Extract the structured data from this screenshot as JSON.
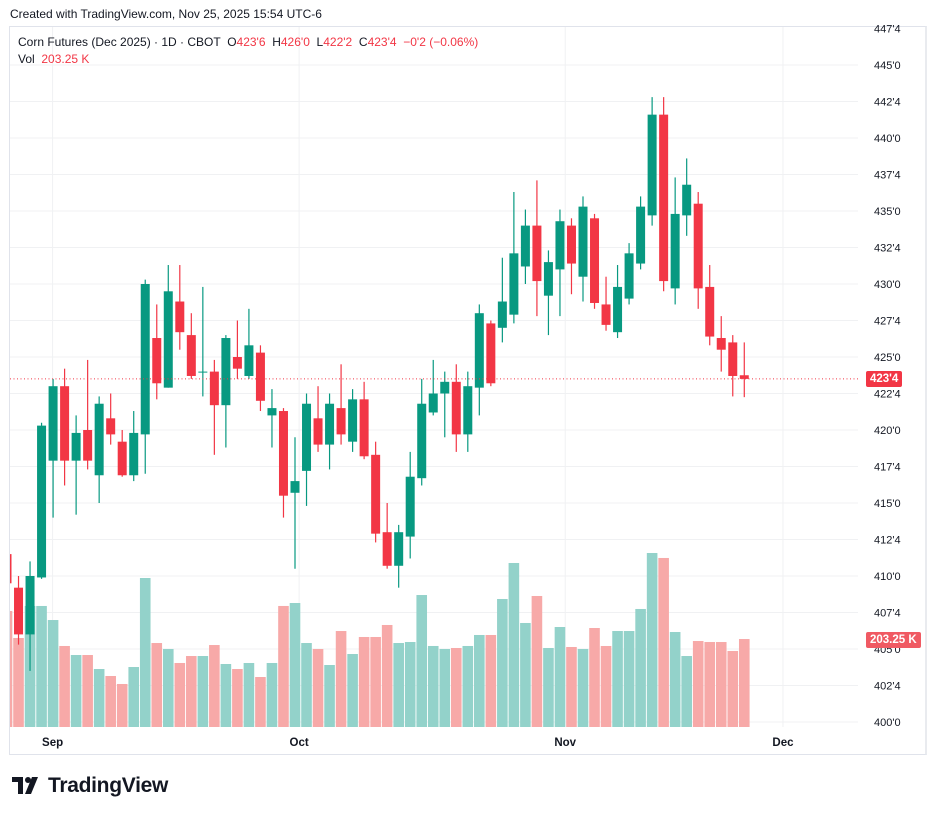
{
  "created_text": "Created with TradingView.com, Nov 25, 2025 15:54 UTC-6",
  "legend": {
    "symbol": "Corn Futures (Dec 2025) · 1D · CBOT",
    "o_label": "O",
    "o_value": "423'6",
    "h_label": "H",
    "h_value": "426'0",
    "l_label": "L",
    "l_value": "422'2",
    "c_label": "C",
    "c_value": "423'4",
    "change": "−0'2 (−0.06%)",
    "vol_label": "Vol",
    "vol_value": "203.25 K"
  },
  "last_price_tag": "423'4",
  "last_volume_tag": "203.25 K",
  "logo_text": "TradingView",
  "colors": {
    "up": "#089981",
    "down": "#f23645",
    "up_vol": "#93d2ca",
    "down_vol": "#f7a9a8",
    "grid": "#f0f1f3"
  },
  "chart_data": {
    "type": "candlestick",
    "price_last": 423.5,
    "price_ticks": [
      {
        "value": 400,
        "label": "400'0"
      },
      {
        "value": 402.5,
        "label": "402'4"
      },
      {
        "value": 405,
        "label": "405'0"
      },
      {
        "value": 407.5,
        "label": "407'4"
      },
      {
        "value": 410,
        "label": "410'0"
      },
      {
        "value": 412.5,
        "label": "412'4"
      },
      {
        "value": 415,
        "label": "415'0"
      },
      {
        "value": 417.5,
        "label": "417'4"
      },
      {
        "value": 420,
        "label": "420'0"
      },
      {
        "value": 422.5,
        "label": "422'4"
      },
      {
        "value": 425,
        "label": "425'0"
      },
      {
        "value": 427.5,
        "label": "427'4"
      },
      {
        "value": 430,
        "label": "430'0"
      },
      {
        "value": 432.5,
        "label": "432'4"
      },
      {
        "value": 435,
        "label": "435'0"
      },
      {
        "value": 437.5,
        "label": "437'4"
      },
      {
        "value": 440,
        "label": "440'0"
      },
      {
        "value": 442.5,
        "label": "442'4"
      },
      {
        "value": 445,
        "label": "445'0"
      },
      {
        "value": 447.5,
        "label": "447'4"
      }
    ],
    "time_ticks": [
      {
        "bar": 3,
        "label": "Sep"
      },
      {
        "bar": 24.4,
        "label": "Oct"
      },
      {
        "bar": 47.5,
        "label": "Nov"
      },
      {
        "bar": 66.4,
        "label": "Dec"
      }
    ],
    "candles_ohlc": [
      [
        411.5,
        412,
        409.5,
        409.5
      ],
      [
        409.2,
        410.0,
        405.3,
        406.0
      ],
      [
        406.0,
        411.0,
        403.5,
        410.0
      ],
      [
        409.9,
        420.5,
        409.8,
        420.3
      ],
      [
        417.9,
        423.5,
        414.0,
        423.0
      ],
      [
        423.0,
        424.2,
        416.2,
        417.9
      ],
      [
        417.9,
        421.0,
        414.2,
        419.8
      ],
      [
        420.0,
        424.8,
        417.3,
        417.9
      ],
      [
        416.9,
        422.3,
        415.0,
        421.8
      ],
      [
        420.8,
        422.5,
        419.0,
        419.7
      ],
      [
        419.2,
        420.0,
        416.8,
        416.9
      ],
      [
        416.9,
        421.3,
        416.5,
        419.8
      ],
      [
        419.7,
        430.3,
        417.0,
        430.0
      ],
      [
        426.3,
        428.6,
        422.1,
        423.2
      ],
      [
        422.9,
        431.3,
        422.9,
        429.5
      ],
      [
        428.8,
        431.3,
        425.5,
        426.7
      ],
      [
        426.5,
        428.0,
        423.5,
        423.7
      ],
      [
        424.0,
        429.8,
        422.3,
        424.0
      ],
      [
        424.0,
        424.8,
        418.3,
        421.7
      ],
      [
        421.7,
        426.5,
        418.8,
        426.3
      ],
      [
        425.0,
        427.5,
        423.5,
        424.2
      ],
      [
        423.7,
        428.3,
        423.5,
        425.8
      ],
      [
        425.3,
        425.8,
        421.3,
        422.0
      ],
      [
        421.0,
        422.8,
        418.8,
        421.5
      ],
      [
        421.3,
        421.5,
        414.0,
        415.5
      ],
      [
        415.7,
        419.5,
        410.5,
        416.5
      ],
      [
        417.2,
        422.5,
        414.8,
        421.8
      ],
      [
        420.8,
        423.0,
        418.5,
        419.0
      ],
      [
        419.0,
        422.5,
        417.3,
        421.8
      ],
      [
        421.5,
        424.5,
        419.0,
        419.7
      ],
      [
        419.2,
        422.8,
        418.5,
        422.1
      ],
      [
        422.1,
        423.3,
        418.0,
        418.2
      ],
      [
        418.3,
        419.2,
        412.3,
        412.9
      ],
      [
        413.0,
        415.0,
        410.5,
        410.7
      ],
      [
        410.7,
        413.5,
        409.2,
        413.0
      ],
      [
        412.7,
        418.5,
        411.2,
        416.8
      ],
      [
        416.7,
        423.5,
        416.2,
        421.8
      ],
      [
        421.2,
        424.8,
        421.0,
        422.5
      ],
      [
        422.5,
        424.0,
        419.5,
        423.3
      ],
      [
        423.3,
        424.5,
        418.5,
        419.7
      ],
      [
        419.7,
        424.0,
        418.5,
        423.0
      ],
      [
        422.9,
        428.6,
        421.0,
        428.0
      ],
      [
        427.3,
        427.5,
        423.0,
        423.2
      ],
      [
        427.0,
        431.8,
        426.0,
        428.8
      ],
      [
        427.9,
        436.3,
        427.3,
        432.1
      ],
      [
        431.2,
        435.1,
        430.0,
        434.0
      ],
      [
        434.0,
        437.1,
        427.8,
        430.2
      ],
      [
        429.2,
        432.3,
        426.5,
        431.5
      ],
      [
        431.0,
        435.1,
        427.8,
        434.3
      ],
      [
        434.0,
        434.5,
        429.3,
        431.4
      ],
      [
        430.5,
        436.0,
        428.8,
        435.3
      ],
      [
        434.5,
        434.8,
        428.3,
        428.7
      ],
      [
        428.6,
        430.5,
        426.8,
        427.2
      ],
      [
        426.7,
        431.3,
        426.3,
        429.8
      ],
      [
        429.0,
        432.8,
        428.6,
        432.1
      ],
      [
        431.4,
        436.0,
        431.0,
        435.3
      ],
      [
        434.7,
        442.8,
        434.0,
        441.6
      ],
      [
        441.6,
        442.8,
        429.5,
        430.2
      ],
      [
        429.7,
        437.3,
        428.6,
        434.8
      ],
      [
        434.7,
        438.6,
        433.3,
        436.8
      ],
      [
        435.5,
        436.3,
        428.3,
        429.7
      ],
      [
        429.8,
        431.3,
        425.8,
        426.4
      ],
      [
        426.3,
        427.8,
        424.0,
        425.5
      ],
      [
        426.0,
        426.5,
        422.3,
        423.7
      ],
      [
        423.75,
        426.0,
        422.25,
        423.5
      ]
    ],
    "volumes_k": [
      267.5,
      205.6,
      279,
      279,
      246.8,
      187.3,
      166.6,
      166.6,
      134.5,
      118.5,
      100.2,
      139.1,
      343.1,
      194.1,
      180.4,
      148.3,
      164.3,
      164.3,
      189.5,
      146,
      134.5,
      148.3,
      116.2,
      148.3,
      279,
      285.8,
      194.1,
      180.4,
      143.7,
      221.6,
      168.9,
      207.9,
      207.9,
      235.4,
      194.1,
      196.4,
      304.1,
      187.3,
      180.4,
      182.7,
      187.3,
      212.5,
      212.5,
      295,
      377.5,
      240,
      301.9,
      182.7,
      230.8,
      185,
      180.4,
      228.5,
      187.3,
      221.6,
      221.6,
      272.1,
      400.4,
      389,
      219.3,
      164.3,
      198.7,
      196.4,
      196.4,
      175.8,
      203.25
    ]
  }
}
